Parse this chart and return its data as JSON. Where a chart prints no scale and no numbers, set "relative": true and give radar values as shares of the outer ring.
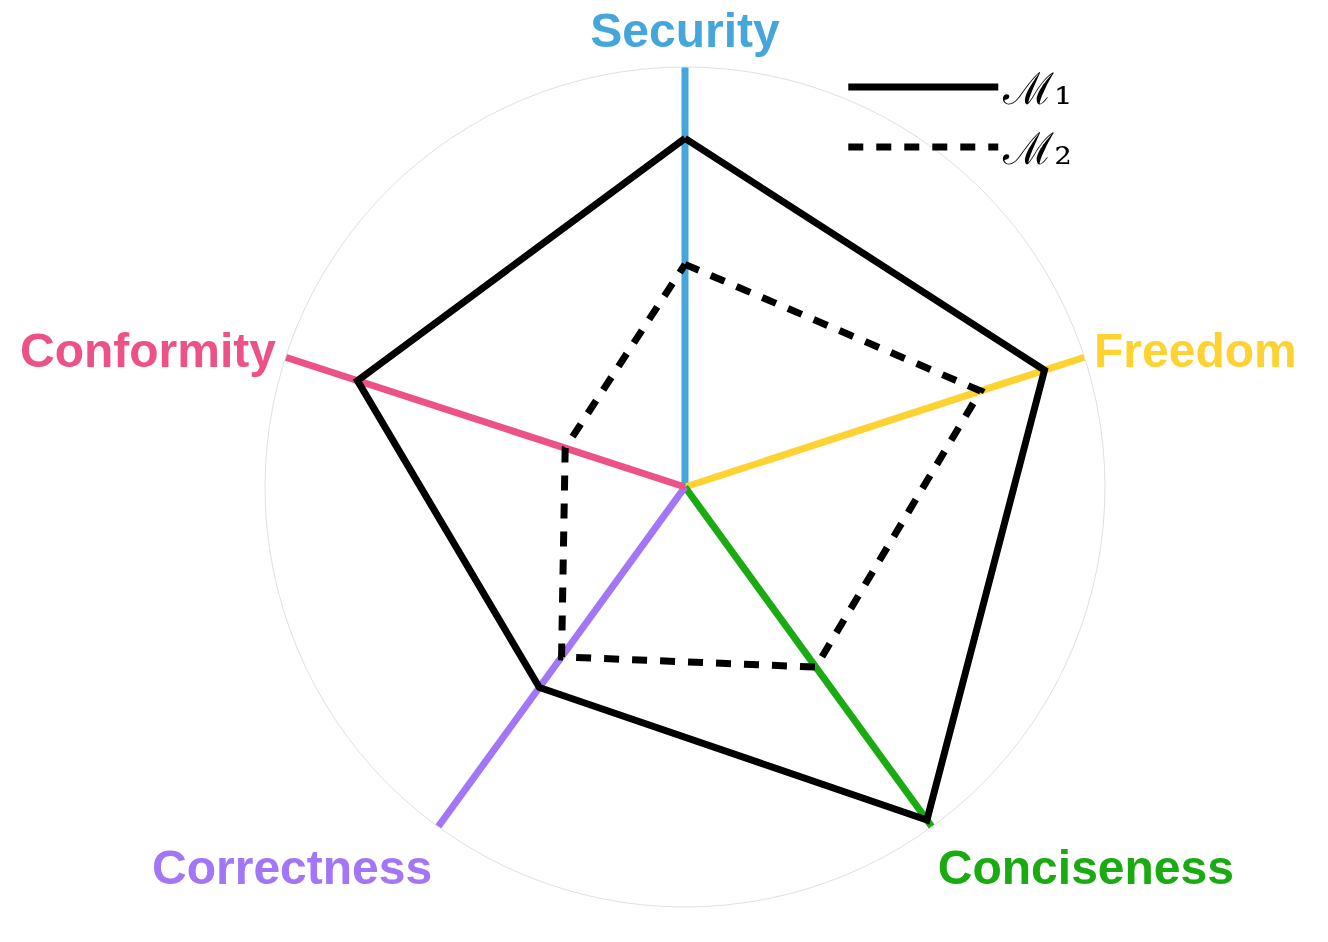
{
  "chart_data": {
    "type": "radar",
    "relative": true,
    "categories": [
      "Security",
      "Freedom",
      "Conciseness",
      "Correctness",
      "Conformity"
    ],
    "colors": [
      "#45a6dc",
      "#fdd231",
      "#1aaa12",
      "#a375f7",
      "#ec5285"
    ],
    "series": [
      {
        "name": "ℳ₁",
        "color": "#000000",
        "line_style": "solid",
        "values": [
          0.83,
          0.9,
          0.98,
          0.59,
          0.82
        ]
      },
      {
        "name": "ℳ₂",
        "color": "#000000",
        "line_style": "dashed",
        "values": [
          0.53,
          0.74,
          0.53,
          0.5,
          0.3
        ]
      }
    ],
    "legend": "top right"
  }
}
